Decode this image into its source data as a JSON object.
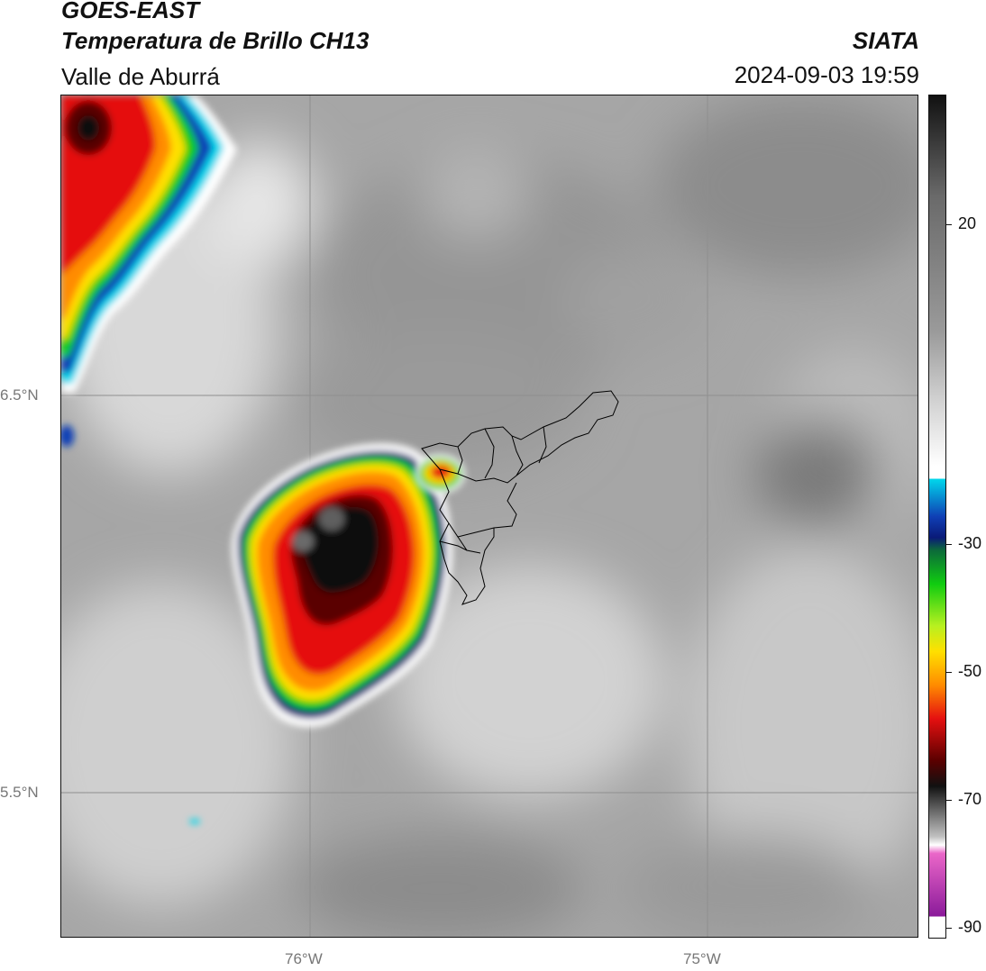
{
  "header": {
    "satellite": "GOES-EAST",
    "product": "Temperatura de Brillo CH13",
    "region": "Valle de Aburrá",
    "organization": "SIATA",
    "timestamp": "2024-09-03 19:59"
  },
  "map": {
    "lat_labels": [
      "6.5°N",
      "5.5°N"
    ],
    "lon_labels": [
      "76°W",
      "75°W"
    ],
    "grid": true
  },
  "colorbar": {
    "ticks": [
      "20",
      "-30",
      "-50",
      "-70",
      "-90"
    ],
    "palette": {
      "white": "#ffffff",
      "gray_light": "#d0d0d0",
      "gray_dark": "#6a6a6a",
      "black": "#111111",
      "cyan": "#00d8ec",
      "blue": "#0f3fb5",
      "navy": "#0a1a78",
      "green": "#10cc10",
      "yellow": "#ffe000",
      "orange": "#ff8c00",
      "red": "#e51010",
      "dark_red": "#5a0000",
      "pink": "#ea66c8",
      "purple": "#8a1a9a"
    }
  }
}
